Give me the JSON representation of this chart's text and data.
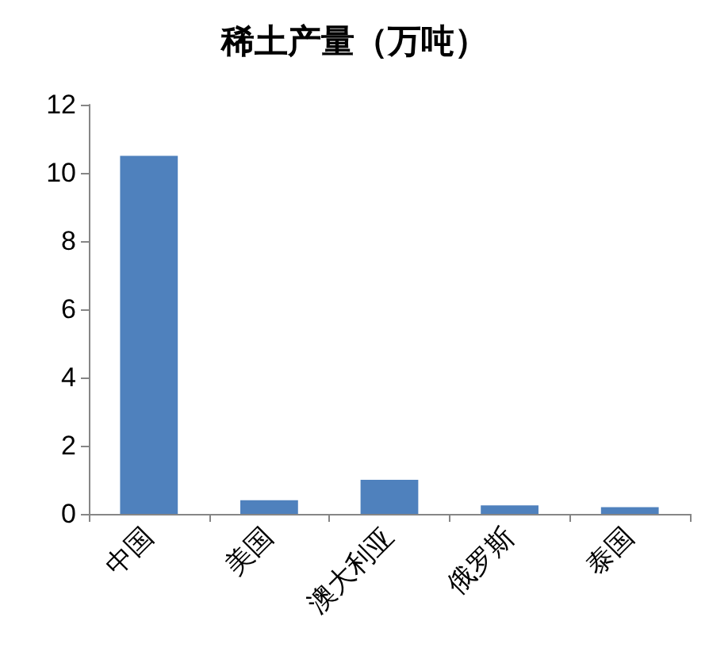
{
  "chart_data": {
    "type": "bar",
    "title": "稀土产量（万吨）",
    "categories": [
      "中国",
      "美国",
      "澳大利亚",
      "俄罗斯",
      "泰国"
    ],
    "values": [
      10.5,
      0.4,
      1.0,
      0.25,
      0.2
    ],
    "color": "#4f81bd",
    "ylim": [
      0,
      12
    ],
    "yticks": [
      0,
      2,
      4,
      6,
      8,
      10,
      12
    ]
  }
}
